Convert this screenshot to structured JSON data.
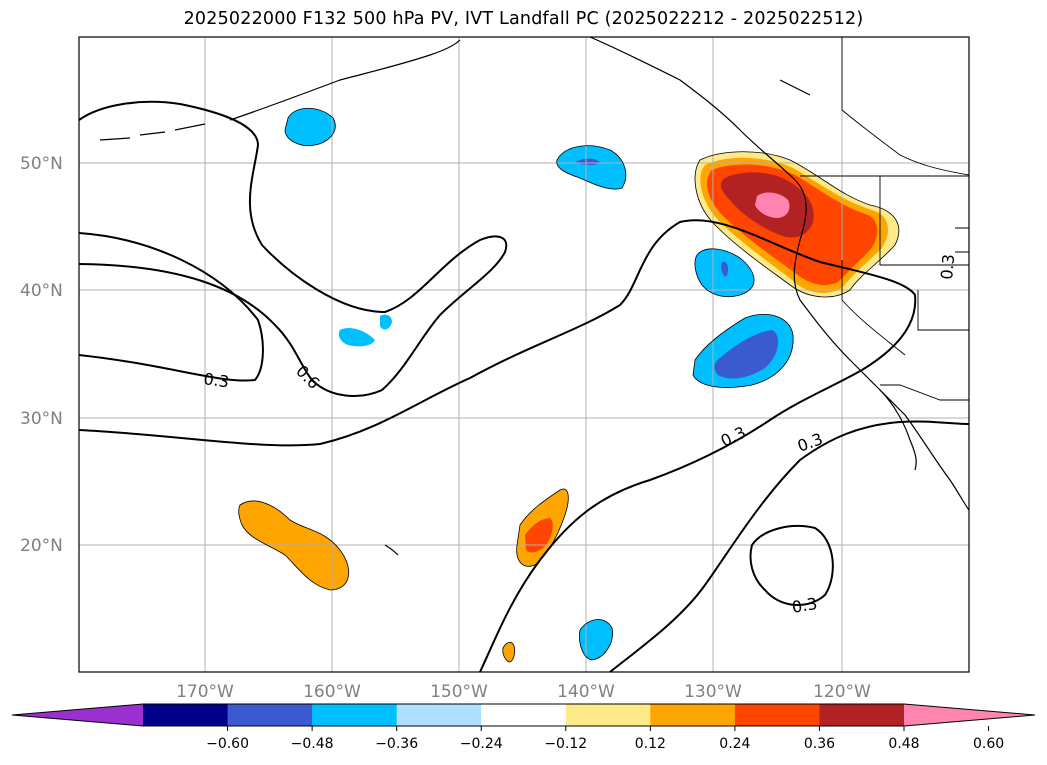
{
  "title": "2025022000 F132 500 hPa PV, IVT Landfall PC (2025022212 - 2025022512)",
  "map": {
    "lat_labels": [
      "50°N",
      "40°N",
      "30°N",
      "20°N"
    ],
    "lon_labels": [
      "170°W",
      "160°W",
      "150°W",
      "140°W",
      "130°W",
      "120°W"
    ],
    "contour_labels": [
      "0.3",
      "0.6",
      "0.3",
      "0.3",
      "0.3",
      "0.3"
    ],
    "gridlines": true
  },
  "colorbar": {
    "ticks": [
      "−0.60",
      "−0.48",
      "−0.36",
      "−0.24",
      "−0.12",
      "0.12",
      "0.24",
      "0.36",
      "0.48",
      "0.60"
    ],
    "colors": [
      "#9b30d0",
      "#00008b",
      "#3a5bcf",
      "#00bfff",
      "#b0e0ff",
      "#ffffff",
      "#ffea8a",
      "#ffa500",
      "#ff4500",
      "#b22222",
      "#ff85b0"
    ],
    "extend": "both"
  }
}
